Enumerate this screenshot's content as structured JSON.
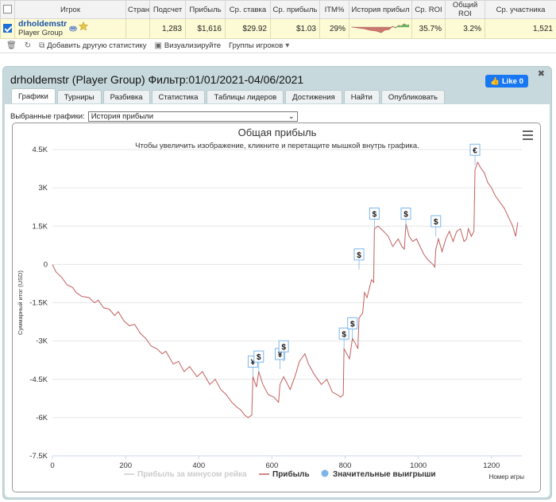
{
  "table": {
    "headers": [
      "Игрок",
      "Стран",
      "Подсчет",
      "Прибыль",
      "Ср. ставка",
      "Ср. прибыль",
      "ITM%",
      "История прибыл",
      "Ср. ROI",
      "Общий ROI",
      "Ср. участника"
    ],
    "row": {
      "player_name": "drholdemstr",
      "player_group": "Player Group",
      "country": "",
      "count": "1,283",
      "profit": "$1,616",
      "avg_stake": "$29.92",
      "avg_profit": "$1.03",
      "itm": "29%",
      "avg_roi": "35.7%",
      "total_roi": "3.2%",
      "avg_entrants": "1,521"
    }
  },
  "toolbar": {
    "add_stats": "Добавить другую статистику",
    "visualize": "Визуализируйте",
    "groups": "Группы игроков"
  },
  "panel": {
    "title": "drholdemstr (Player Group) Фильтр:01/01/2021-04/06/2021",
    "like_label": "Like 0",
    "tabs": [
      "Графики",
      "Турниры",
      "Разбивка",
      "Статистика",
      "Таблицы лидеров",
      "Достижения",
      "Найти",
      "Опубликовать"
    ],
    "active_tab": 0,
    "select_label": "Выбранные графики:",
    "select_value": "История прибыли"
  },
  "colors": {
    "profit_line": "#c0605e",
    "marker": "#7cb5ec",
    "axis_text": "#333333",
    "grid": "#e6e6e6",
    "accent": "#1a53a8"
  },
  "chart_data": {
    "type": "line",
    "title": "Общая прибыль",
    "subtitle": "Чтобы увеличить изображение, кликните и перетащите мышкой внутрь графика.",
    "xlabel": "Номер игры",
    "ylabel": "Суммарный итог (USD)",
    "xlim": [
      0,
      1283
    ],
    "ylim": [
      -7500,
      4500
    ],
    "xticks": [
      0,
      200,
      400,
      600,
      800,
      1000,
      1200
    ],
    "yticks": [
      4500,
      3000,
      1500,
      0,
      -1500,
      -3000,
      -4500,
      -6000,
      -7500
    ],
    "ytick_labels": [
      "4.5K",
      "3K",
      "1.5K",
      "0",
      "-1.5K",
      "-3K",
      "-4.5K",
      "-6K",
      "-7.5K"
    ],
    "grid": "horizontal",
    "legend_position": "bottom",
    "legend": [
      "Прибыль за минусом рейка",
      "Прибыль",
      "Значительные выигрыши"
    ],
    "series": [
      {
        "name": "Прибыль",
        "points": [
          [
            0,
            0
          ],
          [
            10,
            -300
          ],
          [
            25,
            -500
          ],
          [
            40,
            -800
          ],
          [
            55,
            -900
          ],
          [
            65,
            -1100
          ],
          [
            80,
            -1250
          ],
          [
            100,
            -1300
          ],
          [
            115,
            -1500
          ],
          [
            125,
            -1400
          ],
          [
            140,
            -1700
          ],
          [
            155,
            -1750
          ],
          [
            170,
            -2000
          ],
          [
            180,
            -1850
          ],
          [
            195,
            -2200
          ],
          [
            210,
            -2400
          ],
          [
            225,
            -2350
          ],
          [
            240,
            -2700
          ],
          [
            255,
            -2900
          ],
          [
            270,
            -3200
          ],
          [
            285,
            -3300
          ],
          [
            300,
            -3500
          ],
          [
            310,
            -3400
          ],
          [
            330,
            -3900
          ],
          [
            345,
            -3800
          ],
          [
            360,
            -4200
          ],
          [
            375,
            -4000
          ],
          [
            395,
            -4400
          ],
          [
            410,
            -4200
          ],
          [
            430,
            -4700
          ],
          [
            445,
            -4500
          ],
          [
            460,
            -4900
          ],
          [
            475,
            -5100
          ],
          [
            490,
            -5400
          ],
          [
            505,
            -5600
          ],
          [
            515,
            -5700
          ],
          [
            525,
            -5900
          ],
          [
            535,
            -6000
          ],
          [
            545,
            -5900
          ],
          [
            548,
            -4400
          ],
          [
            558,
            -4800
          ],
          [
            564,
            -4200
          ],
          [
            575,
            -4700
          ],
          [
            590,
            -5100
          ],
          [
            605,
            -5200
          ],
          [
            618,
            -5400
          ],
          [
            622,
            -4700
          ],
          [
            632,
            -4400
          ],
          [
            650,
            -4900
          ],
          [
            665,
            -4300
          ],
          [
            675,
            -3800
          ],
          [
            690,
            -3500
          ],
          [
            700,
            -3900
          ],
          [
            715,
            -4300
          ],
          [
            735,
            -4700
          ],
          [
            750,
            -4500
          ],
          [
            765,
            -5000
          ],
          [
            778,
            -5100
          ],
          [
            788,
            -5200
          ],
          [
            795,
            -5100
          ],
          [
            797,
            -3300
          ],
          [
            812,
            -3700
          ],
          [
            820,
            -2900
          ],
          [
            828,
            -3100
          ],
          [
            835,
            -3300
          ],
          [
            838,
            -2100
          ],
          [
            848,
            -1900
          ],
          [
            853,
            -1100
          ],
          [
            860,
            -1300
          ],
          [
            872,
            -600
          ],
          [
            878,
            -700
          ],
          [
            880,
            1400
          ],
          [
            890,
            1500
          ],
          [
            905,
            1300
          ],
          [
            918,
            1100
          ],
          [
            930,
            700
          ],
          [
            945,
            1000
          ],
          [
            955,
            700
          ],
          [
            962,
            600
          ],
          [
            966,
            1600
          ],
          [
            975,
            1100
          ],
          [
            985,
            900
          ],
          [
            995,
            1000
          ],
          [
            1005,
            700
          ],
          [
            1015,
            400
          ],
          [
            1025,
            200
          ],
          [
            1040,
            0
          ],
          [
            1045,
            -100
          ],
          [
            1048,
            600
          ],
          [
            1055,
            1000
          ],
          [
            1065,
            500
          ],
          [
            1075,
            1000
          ],
          [
            1085,
            1300
          ],
          [
            1095,
            900
          ],
          [
            1105,
            1300
          ],
          [
            1115,
            1400
          ],
          [
            1125,
            900
          ],
          [
            1132,
            1000
          ],
          [
            1137,
            1400
          ],
          [
            1145,
            1100
          ],
          [
            1152,
            1300
          ],
          [
            1155,
            3700
          ],
          [
            1162,
            4000
          ],
          [
            1170,
            3800
          ],
          [
            1180,
            3600
          ],
          [
            1190,
            3200
          ],
          [
            1200,
            3000
          ],
          [
            1210,
            2700
          ],
          [
            1220,
            2500
          ],
          [
            1235,
            2200
          ],
          [
            1248,
            1800
          ],
          [
            1258,
            1500
          ],
          [
            1266,
            1100
          ],
          [
            1272,
            1650
          ]
        ]
      },
      {
        "name": "Значительные выигрыши",
        "markers": [
          {
            "x": 548,
            "y": -4400,
            "label": "¥"
          },
          {
            "x": 564,
            "y": -4200,
            "label": "$"
          },
          {
            "x": 622,
            "y": -4100,
            "label": "¥"
          },
          {
            "x": 632,
            "y": -3800,
            "label": "$"
          },
          {
            "x": 797,
            "y": -3300,
            "label": "$"
          },
          {
            "x": 820,
            "y": -2900,
            "label": "$"
          },
          {
            "x": 838,
            "y": -200,
            "label": "$"
          },
          {
            "x": 880,
            "y": 1400,
            "label": "$"
          },
          {
            "x": 966,
            "y": 1400,
            "label": "$"
          },
          {
            "x": 1048,
            "y": 1100,
            "label": "$"
          },
          {
            "x": 1155,
            "y": 3900,
            "label": "€"
          }
        ]
      }
    ]
  }
}
